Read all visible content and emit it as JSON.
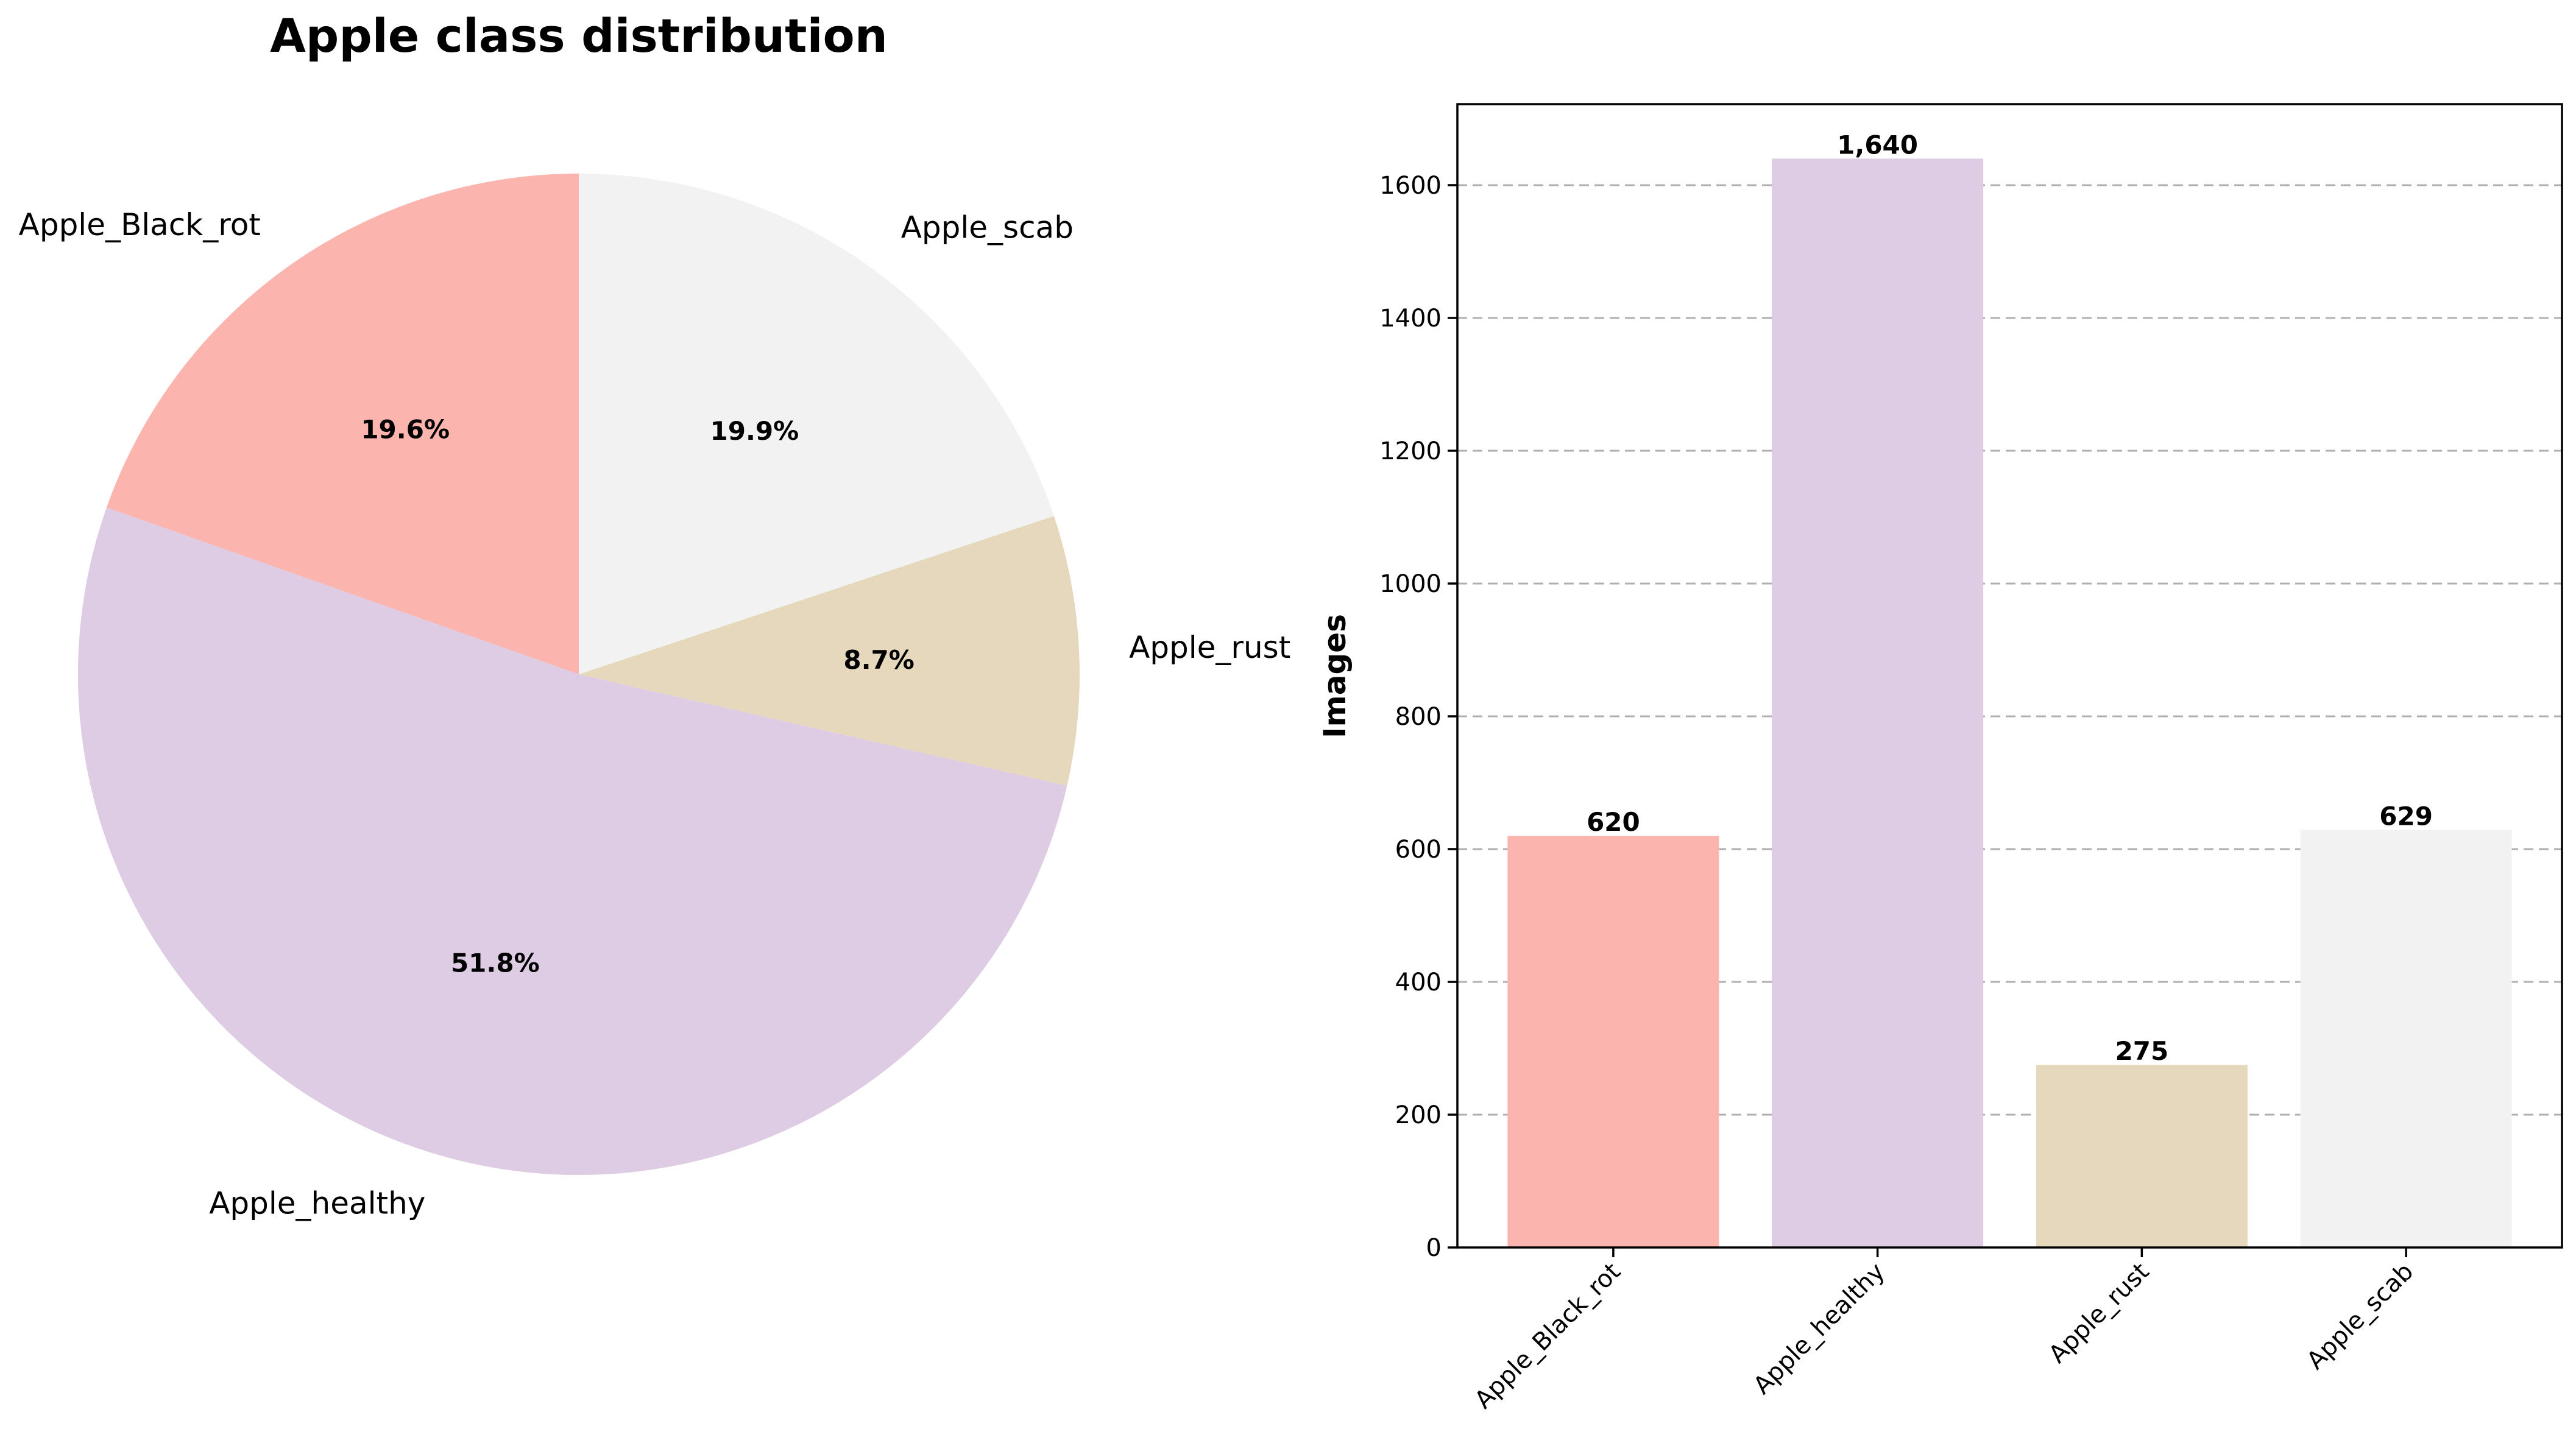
{
  "chart_data": [
    {
      "type": "pie",
      "title": "Apple class distribution",
      "labels": [
        "Apple_Black_rot",
        "Apple_healthy",
        "Apple_rust",
        "Apple_scab"
      ],
      "values": [
        620,
        1640,
        275,
        629
      ],
      "percent_labels": [
        "19.6%",
        "51.8%",
        "8.7%",
        "19.9%"
      ],
      "colors": [
        "#fbb4ae",
        "#decbe4",
        "#e5d8bd",
        "#f2f2f2"
      ],
      "start_angle_deg": 90,
      "direction": "counterclockwise"
    },
    {
      "type": "bar",
      "categories": [
        "Apple_Black_rot",
        "Apple_healthy",
        "Apple_rust",
        "Apple_scab"
      ],
      "values": [
        620,
        1640,
        275,
        629
      ],
      "value_labels": [
        "620",
        "1,640",
        "275",
        "629"
      ],
      "colors": [
        "#fbb4ae",
        "#decbe4",
        "#e5d8bd",
        "#f2f2f2"
      ],
      "xlabel": "",
      "ylabel": "Images",
      "ylim": [
        0,
        1722
      ],
      "yticks": [
        0,
        200,
        400,
        600,
        800,
        1000,
        1200,
        1400,
        1600
      ],
      "grid": "y-dashed",
      "xtick_rotation_deg": 45
    }
  ]
}
